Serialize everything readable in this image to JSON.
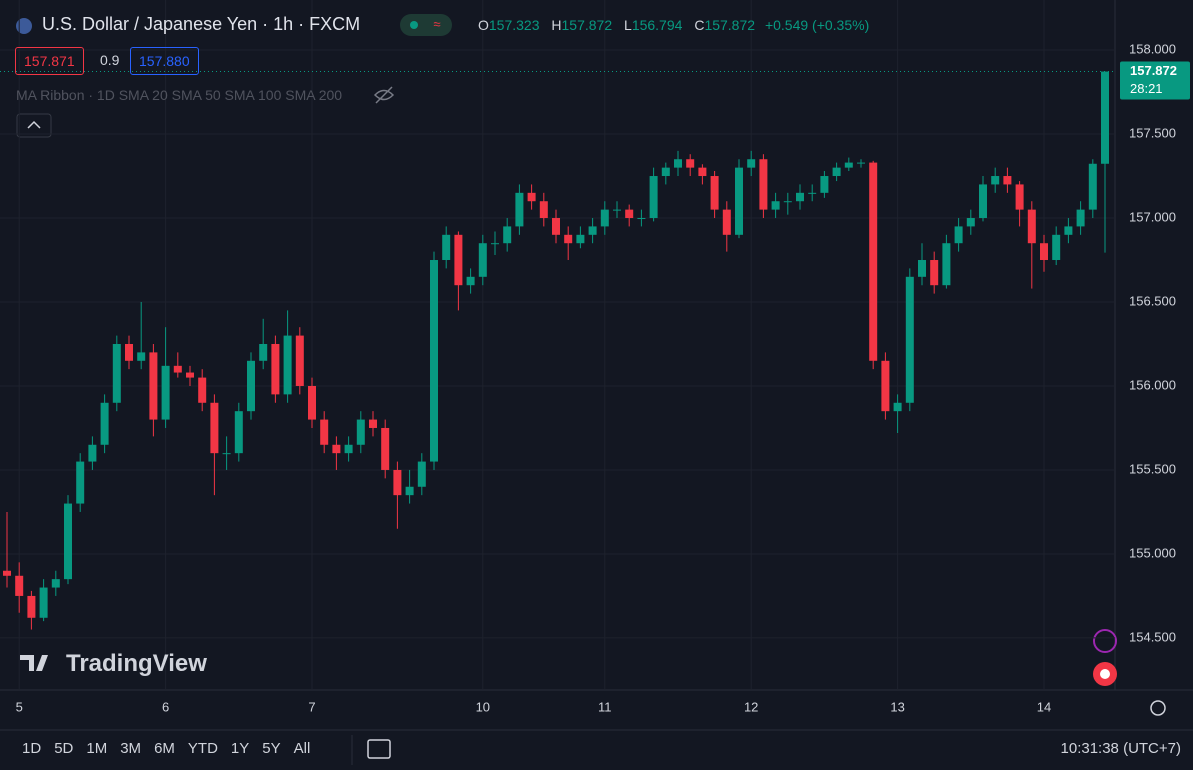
{
  "header": {
    "symbol": "U.S. Dollar / Japanese Yen · 1h · FXCM",
    "open_label": "O",
    "open": "157.323",
    "high_label": "H",
    "high": "157.872",
    "low_label": "L",
    "low": "156.794",
    "close_label": "C",
    "close": "157.872",
    "change": "+0.549 (+0.35%)",
    "bid": "157.871",
    "spread": "0.9",
    "ask": "157.880",
    "indicator": "MA Ribbon · 1D SMA 20 SMA 50 SMA 100 SMA 200",
    "countdown": "28:21",
    "logo": "TradingView"
  },
  "toolbar": {
    "ranges": [
      "1D",
      "5D",
      "1M",
      "3M",
      "6M",
      "YTD",
      "1Y",
      "5Y",
      "All"
    ],
    "clock": "10:31:38 (UTC+7)"
  },
  "chart_data": {
    "type": "candlestick",
    "up_color": "#089981",
    "down_color": "#f23645",
    "grid": true,
    "ylim": [
      154.19,
      158.298
    ],
    "yticks": [
      {
        "value": 154.5,
        "label": "154.500"
      },
      {
        "value": 155,
        "label": "155.000"
      },
      {
        "value": 155.5,
        "label": "155.500"
      },
      {
        "value": 156,
        "label": "156.000"
      },
      {
        "value": 156.5,
        "label": "156.500"
      },
      {
        "value": 157,
        "label": "157.000"
      },
      {
        "value": 157.5,
        "label": "157.500"
      },
      {
        "value": 158,
        "label": "158.000"
      }
    ],
    "categories": [
      null,
      "5",
      null,
      null,
      null,
      null,
      null,
      null,
      null,
      null,
      null,
      null,
      null,
      "6",
      null,
      null,
      null,
      null,
      null,
      null,
      null,
      null,
      null,
      null,
      null,
      "7",
      null,
      null,
      null,
      null,
      null,
      null,
      null,
      null,
      null,
      null,
      null,
      null,
      null,
      "10",
      null,
      null,
      null,
      null,
      null,
      null,
      null,
      null,
      null,
      "11",
      null,
      null,
      null,
      null,
      null,
      null,
      null,
      null,
      null,
      null,
      null,
      "12",
      null,
      null,
      null,
      null,
      null,
      null,
      null,
      null,
      null,
      null,
      null,
      "13",
      null,
      null,
      null,
      null,
      null,
      null,
      null,
      null,
      null,
      null,
      null,
      "14",
      null,
      null,
      null,
      null,
      null
    ],
    "open": [
      154.9,
      154.87,
      154.75,
      154.62,
      154.8,
      154.85,
      155.3,
      155.55,
      155.65,
      155.9,
      156.25,
      156.15,
      156.2,
      155.8,
      156.12,
      156.08,
      156.05,
      155.9,
      155.6,
      155.6,
      155.85,
      156.15,
      156.25,
      155.95,
      156.3,
      156.0,
      155.8,
      155.65,
      155.6,
      155.65,
      155.8,
      155.75,
      155.5,
      155.35,
      155.4,
      155.55,
      156.75,
      156.9,
      156.6,
      156.65,
      156.85,
      156.85,
      156.95,
      157.15,
      157.1,
      157.0,
      156.9,
      156.85,
      156.9,
      156.95,
      157.05,
      157.05,
      157.0,
      157.0,
      157.25,
      157.3,
      157.35,
      157.3,
      157.25,
      157.05,
      156.9,
      157.3,
      157.35,
      157.05,
      157.1,
      157.1,
      157.15,
      157.15,
      157.25,
      157.3,
      157.33,
      157.33,
      156.15,
      155.85,
      155.9,
      156.65,
      156.75,
      156.6,
      156.85,
      156.95,
      157.0,
      157.2,
      157.25,
      157.2,
      157.05,
      156.85,
      156.75,
      156.9,
      156.95,
      157.05,
      157.323
    ],
    "high": [
      155.25,
      154.95,
      154.78,
      154.85,
      154.9,
      155.35,
      155.6,
      155.7,
      155.95,
      156.3,
      156.3,
      156.5,
      156.25,
      156.35,
      156.2,
      156.12,
      156.1,
      155.95,
      155.7,
      155.9,
      156.2,
      156.4,
      156.3,
      156.45,
      156.35,
      156.05,
      155.85,
      155.7,
      155.7,
      155.85,
      155.85,
      155.8,
      155.55,
      155.5,
      155.6,
      156.8,
      156.95,
      156.92,
      156.7,
      156.9,
      156.92,
      157.0,
      157.2,
      157.2,
      157.15,
      157.05,
      156.95,
      156.95,
      157.0,
      157.1,
      157.1,
      157.08,
      157.05,
      157.3,
      157.33,
      157.4,
      157.38,
      157.32,
      157.28,
      157.1,
      157.35,
      157.4,
      157.38,
      157.15,
      157.15,
      157.2,
      157.2,
      157.28,
      157.33,
      157.36,
      157.35,
      157.34,
      156.2,
      155.95,
      156.7,
      156.85,
      156.8,
      156.9,
      157.0,
      157.05,
      157.25,
      157.3,
      157.3,
      157.22,
      157.1,
      156.9,
      156.95,
      157.0,
      157.1,
      157.35,
      157.872
    ],
    "low": [
      154.8,
      154.65,
      154.55,
      154.6,
      154.75,
      154.82,
      155.25,
      155.5,
      155.6,
      155.85,
      156.1,
      156.1,
      155.7,
      155.75,
      156.05,
      156.0,
      155.85,
      155.35,
      155.5,
      155.55,
      155.8,
      156.1,
      155.9,
      155.9,
      155.95,
      155.75,
      155.6,
      155.5,
      155.55,
      155.6,
      155.7,
      155.45,
      155.15,
      155.3,
      155.35,
      155.5,
      156.7,
      156.45,
      156.55,
      156.6,
      156.78,
      156.8,
      156.9,
      157.05,
      156.95,
      156.85,
      156.75,
      156.82,
      156.85,
      156.9,
      157.0,
      156.95,
      156.95,
      156.98,
      157.2,
      157.25,
      157.25,
      157.2,
      157.0,
      156.8,
      156.88,
      157.25,
      157.0,
      157.0,
      157.02,
      157.05,
      157.1,
      157.12,
      157.22,
      157.28,
      157.3,
      156.1,
      155.8,
      155.72,
      155.85,
      156.6,
      156.55,
      156.58,
      156.8,
      156.9,
      156.98,
      157.15,
      157.15,
      156.95,
      156.58,
      156.68,
      156.72,
      156.85,
      156.9,
      157.0,
      156.794
    ],
    "close": [
      154.87,
      154.75,
      154.62,
      154.8,
      154.85,
      155.3,
      155.55,
      155.65,
      155.9,
      156.25,
      156.15,
      156.2,
      155.8,
      156.12,
      156.08,
      156.05,
      155.9,
      155.6,
      155.6,
      155.85,
      156.15,
      156.25,
      155.95,
      156.3,
      156.0,
      155.8,
      155.65,
      155.6,
      155.65,
      155.8,
      155.75,
      155.5,
      155.35,
      155.4,
      155.55,
      156.75,
      156.9,
      156.6,
      156.65,
      156.85,
      156.85,
      156.95,
      157.15,
      157.1,
      157.0,
      156.9,
      156.85,
      156.9,
      156.95,
      157.05,
      157.05,
      157.0,
      157.0,
      157.25,
      157.3,
      157.35,
      157.3,
      157.25,
      157.05,
      156.9,
      157.3,
      157.35,
      157.05,
      157.1,
      157.1,
      157.15,
      157.15,
      157.25,
      157.3,
      157.33,
      157.33,
      156.15,
      155.85,
      155.9,
      156.65,
      156.75,
      156.6,
      156.85,
      156.95,
      157.0,
      157.2,
      157.25,
      157.2,
      157.05,
      156.85,
      156.75,
      156.9,
      156.95,
      157.05,
      157.323,
      157.872
    ]
  }
}
